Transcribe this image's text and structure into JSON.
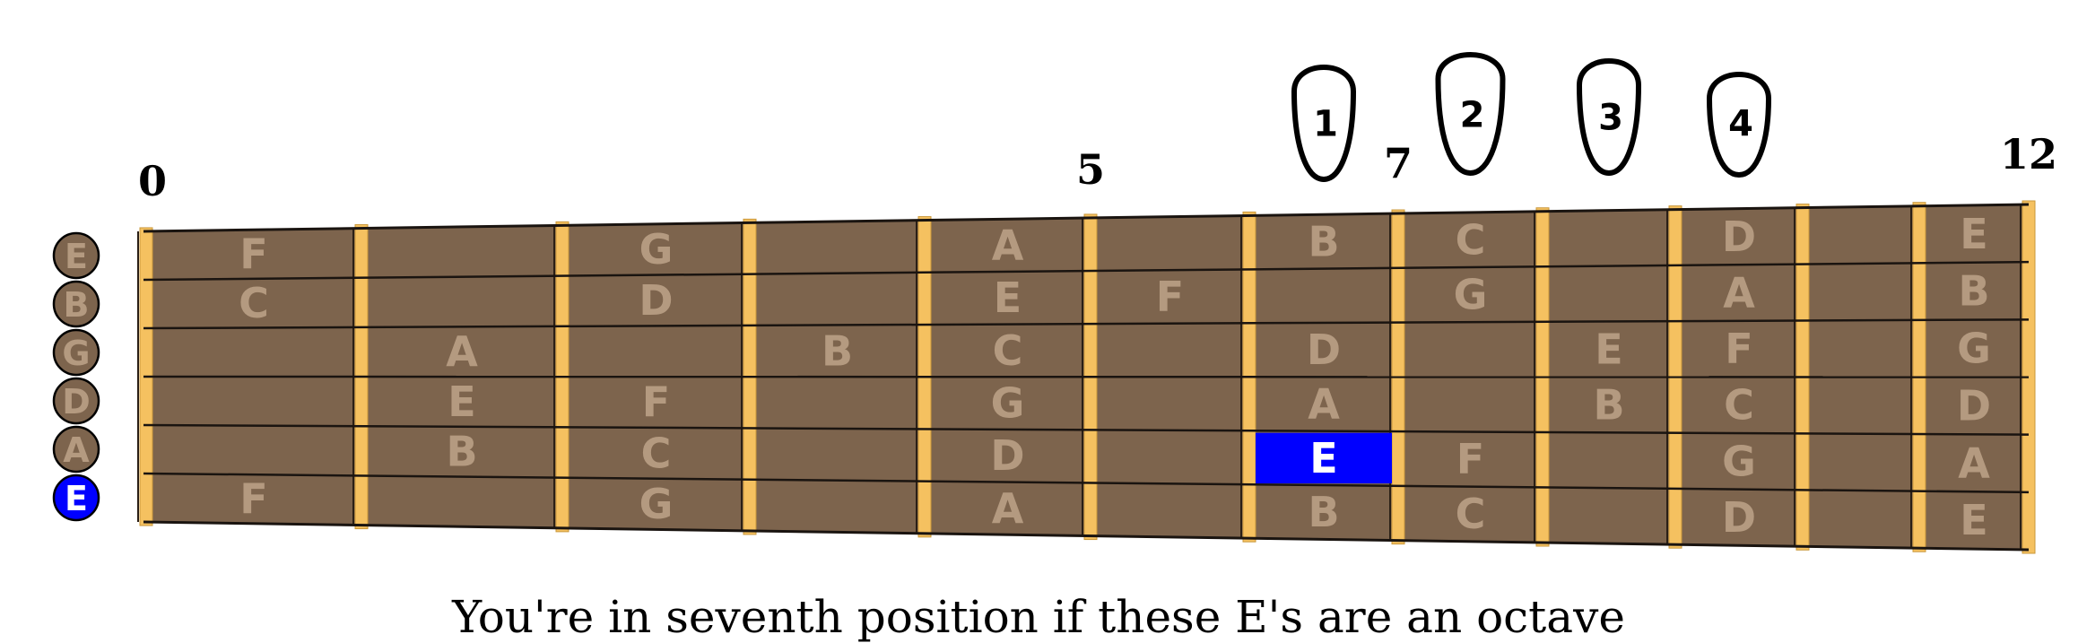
{
  "fret_markers": [
    {
      "fret": 0,
      "label": "0"
    },
    {
      "fret": 5,
      "label": "5"
    },
    {
      "fret": 7,
      "label": "7"
    },
    {
      "fret": 12,
      "label": "12"
    }
  ],
  "open_strings": [
    "E",
    "B",
    "G",
    "D",
    "A",
    "E"
  ],
  "highlighted_open_string": 5,
  "notes": [
    {
      "string": 0,
      "fret": 1,
      "label": "F"
    },
    {
      "string": 0,
      "fret": 3,
      "label": "G"
    },
    {
      "string": 0,
      "fret": 5,
      "label": "A"
    },
    {
      "string": 0,
      "fret": 7,
      "label": "B"
    },
    {
      "string": 0,
      "fret": 8,
      "label": "C"
    },
    {
      "string": 0,
      "fret": 10,
      "label": "D"
    },
    {
      "string": 0,
      "fret": 12,
      "label": "E"
    },
    {
      "string": 1,
      "fret": 1,
      "label": "C"
    },
    {
      "string": 1,
      "fret": 3,
      "label": "D"
    },
    {
      "string": 1,
      "fret": 5,
      "label": "E"
    },
    {
      "string": 1,
      "fret": 6,
      "label": "F"
    },
    {
      "string": 1,
      "fret": 8,
      "label": "G"
    },
    {
      "string": 1,
      "fret": 10,
      "label": "A"
    },
    {
      "string": 1,
      "fret": 12,
      "label": "B"
    },
    {
      "string": 2,
      "fret": 2,
      "label": "A"
    },
    {
      "string": 2,
      "fret": 4,
      "label": "B"
    },
    {
      "string": 2,
      "fret": 5,
      "label": "C"
    },
    {
      "string": 2,
      "fret": 7,
      "label": "D"
    },
    {
      "string": 2,
      "fret": 9,
      "label": "E"
    },
    {
      "string": 2,
      "fret": 10,
      "label": "F"
    },
    {
      "string": 2,
      "fret": 12,
      "label": "G"
    },
    {
      "string": 3,
      "fret": 2,
      "label": "E"
    },
    {
      "string": 3,
      "fret": 3,
      "label": "F"
    },
    {
      "string": 3,
      "fret": 5,
      "label": "G"
    },
    {
      "string": 3,
      "fret": 7,
      "label": "A"
    },
    {
      "string": 3,
      "fret": 9,
      "label": "B"
    },
    {
      "string": 3,
      "fret": 10,
      "label": "C"
    },
    {
      "string": 3,
      "fret": 12,
      "label": "D"
    },
    {
      "string": 4,
      "fret": 2,
      "label": "B"
    },
    {
      "string": 4,
      "fret": 3,
      "label": "C"
    },
    {
      "string": 4,
      "fret": 5,
      "label": "D"
    },
    {
      "string": 4,
      "fret": 7,
      "label": "E",
      "highlight": true
    },
    {
      "string": 4,
      "fret": 8,
      "label": "F"
    },
    {
      "string": 4,
      "fret": 10,
      "label": "G"
    },
    {
      "string": 4,
      "fret": 12,
      "label": "A"
    },
    {
      "string": 5,
      "fret": 1,
      "label": "F"
    },
    {
      "string": 5,
      "fret": 3,
      "label": "G"
    },
    {
      "string": 5,
      "fret": 5,
      "label": "A"
    },
    {
      "string": 5,
      "fret": 7,
      "label": "B"
    },
    {
      "string": 5,
      "fret": 8,
      "label": "C"
    },
    {
      "string": 5,
      "fret": 10,
      "label": "D"
    },
    {
      "string": 5,
      "fret": 12,
      "label": "E"
    }
  ],
  "fingers": [
    {
      "label": "1",
      "fret": 7
    },
    {
      "label": "2",
      "fret": 8
    },
    {
      "label": "3",
      "fret": 9
    },
    {
      "label": "4",
      "fret": 10
    }
  ],
  "caption": "You're in seventh position if these E's are an octave",
  "colors": {
    "fretboard": "#7d644d",
    "fret_wire": "#f5c160",
    "string_line": "#1a1410",
    "note_text": "#b49a80",
    "highlight": "#0000ff",
    "open_circle": "#7d644d"
  }
}
